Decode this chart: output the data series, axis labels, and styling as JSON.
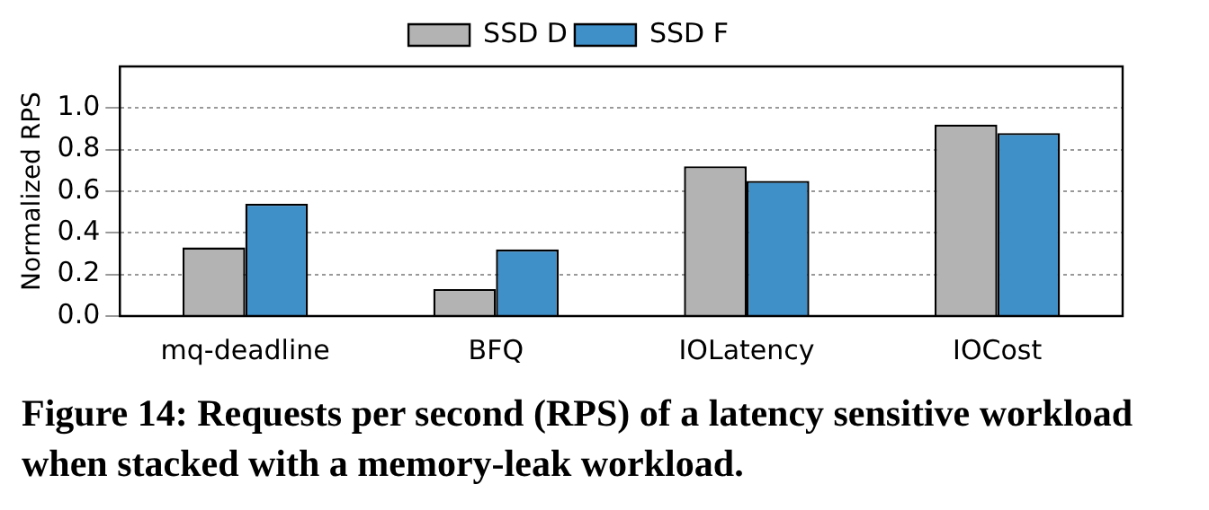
{
  "chart_data": {
    "type": "bar",
    "ylabel": "Normalized RPS",
    "categories": [
      "mq-deadline",
      "BFQ",
      "IOLatency",
      "IOCost"
    ],
    "series": [
      {
        "name": "SSD D",
        "color": "#b3b3b3",
        "values": [
          0.33,
          0.13,
          0.72,
          0.92
        ]
      },
      {
        "name": "SSD F",
        "color": "#3f8fc8",
        "values": [
          0.54,
          0.32,
          0.65,
          0.88
        ]
      }
    ],
    "ylim": [
      0,
      1.2
    ],
    "yticks": [
      {
        "value": 0,
        "label": "0.0"
      },
      0.2,
      0.4,
      0.6,
      0.8,
      {
        "value": 1,
        "label": "1.0"
      }
    ],
    "grid": "y",
    "legend": "top",
    "annotations": [
      "Figure 14: Requests per second (RPS) of a latency sensitive workload when stacked with a memory-leak workload."
    ]
  }
}
